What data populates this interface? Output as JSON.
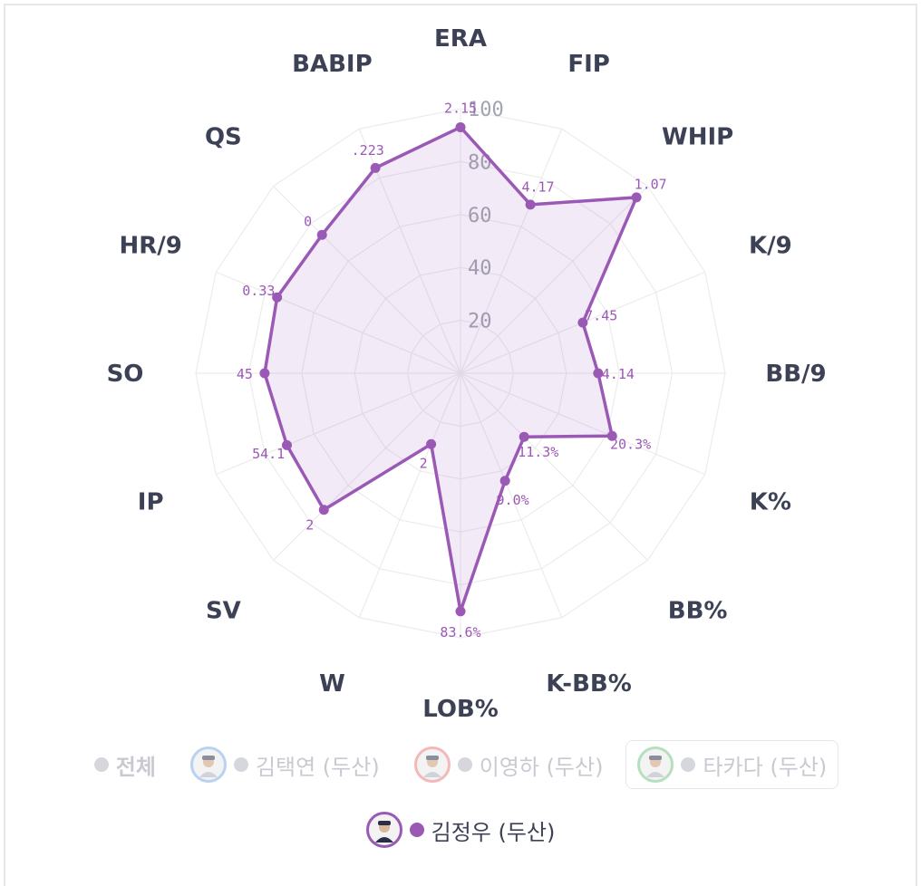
{
  "chart_data": {
    "type": "radar",
    "axes": [
      "ERA",
      "FIP",
      "WHIP",
      "K/9",
      "BB/9",
      "K%",
      "BB%",
      "K-BB%",
      "LOB%",
      "W",
      "SV",
      "IP",
      "SO",
      "HR/9",
      "QS",
      "BABIP"
    ],
    "scale_ticks": [
      "20",
      "40",
      "60",
      "80",
      "100"
    ],
    "rlim": [
      0,
      100
    ],
    "series": [
      {
        "name": "김정우 (두산)",
        "color": "#9b59b6",
        "values": [
          93,
          69,
          94,
          50,
          52,
          62,
          34,
          44,
          90,
          29,
          73,
          71,
          74,
          75,
          74,
          84
        ],
        "labels": [
          "2.15",
          "4.17",
          "1.07",
          "7.45",
          "4.14",
          "20.3%",
          "11.3%",
          "9.0%",
          "83.6%",
          "2",
          "2",
          "54.1",
          "45",
          "0.33",
          "0",
          ".223"
        ]
      }
    ]
  },
  "legend": [
    {
      "label": "전체",
      "state": "inactive",
      "avatar": false
    },
    {
      "label": "김택연 (두산)",
      "state": "inactive",
      "avatar": true,
      "ring_color": "#b9d2f3"
    },
    {
      "label": "이영하 (두산)",
      "state": "inactive",
      "avatar": true,
      "ring_color": "#f3b9b9"
    },
    {
      "label": "타카다 (두산)",
      "state": "inactive",
      "avatar": true,
      "ring_color": "#b4e0bd",
      "boxed": true
    },
    {
      "label": "김정우 (두산)",
      "state": "active",
      "avatar": true,
      "ring_color": "#9b59b6"
    }
  ]
}
